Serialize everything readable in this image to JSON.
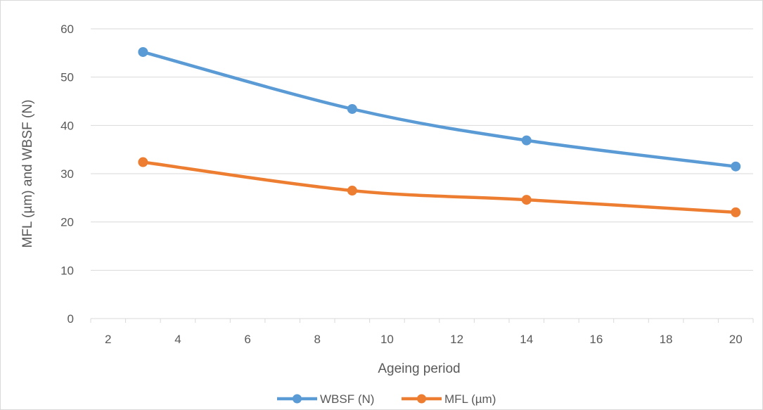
{
  "chart_data": {
    "type": "line",
    "title": "",
    "xlabel": "Ageing period",
    "ylabel": "MFL (µm) and WBSF (N)",
    "xlim": [
      1.5,
      20.5
    ],
    "ylim": [
      0,
      60
    ],
    "x_ticks": [
      2,
      4,
      6,
      8,
      10,
      12,
      14,
      16,
      18,
      20
    ],
    "y_ticks": [
      0,
      10,
      20,
      30,
      40,
      50,
      60
    ],
    "grid": "horizontal",
    "legend_position": "bottom",
    "series": [
      {
        "name": "WBSF (N)",
        "color": "#5b9bd5",
        "x": [
          3,
          9,
          14,
          20
        ],
        "y": [
          55.2,
          43.4,
          36.9,
          31.5
        ]
      },
      {
        "name": "MFL (µm)",
        "color": "#ed7d31",
        "x": [
          3,
          9,
          14,
          20
        ],
        "y": [
          32.4,
          26.5,
          24.6,
          22.0
        ]
      }
    ]
  }
}
